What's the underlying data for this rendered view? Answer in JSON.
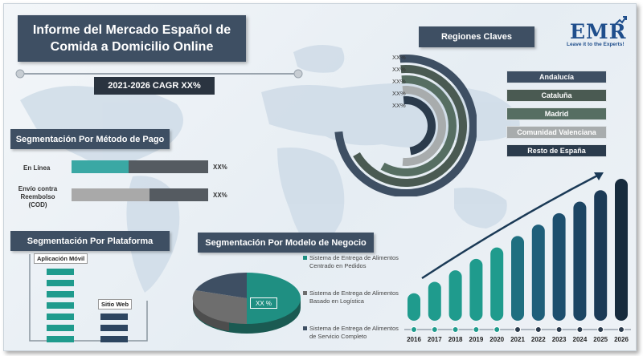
{
  "title": "Informe del Mercado Español de Comida a Domicilio Online",
  "cagr": "2021-2026 CAGR XX%",
  "logo": {
    "brand": "EMR",
    "tagline": "Leave it to the Experts!"
  },
  "payment": {
    "title": "Segmentación Por Método de Pago",
    "items": [
      {
        "label": "En Línea",
        "value_text": "XX%",
        "fill_fraction": 0.42,
        "color": "#3aa8a4"
      },
      {
        "label": "Envío contra Reembolso (COD)",
        "value_text": "XX%",
        "fill_fraction": 0.57,
        "color": "#a9a9a9"
      }
    ]
  },
  "platform": {
    "title": "Segmentación Por Plataforma",
    "items": [
      {
        "label": "Aplicación Móvil",
        "blocks": 7,
        "color": "#1f9b8d"
      },
      {
        "label": "Sitio Web",
        "blocks": 3,
        "color": "#2d4560"
      }
    ]
  },
  "business_model": {
    "title": "Segmentación Por Modelo de Negocio",
    "pie_label": "XX %",
    "legend": [
      {
        "label": "Sistema de Entrega de Alimentos Centrado en Pedidos",
        "color": "#1f8f82"
      },
      {
        "label": "Sistema de Entrega de Alimentos Basado en Logística",
        "color": "#6e6e6e"
      },
      {
        "label": "Sistema de Entrega de Alimentos de Servicio Completo",
        "color": "#3e4f63"
      }
    ]
  },
  "regions": {
    "title": "Regiones Claves",
    "items": [
      {
        "name": "Andalucía",
        "value_text": "XX%",
        "color": "#3e4f63"
      },
      {
        "name": "Cataluña",
        "value_text": "XX%",
        "color": "#4a5a52"
      },
      {
        "name": "Madrid",
        "value_text": "XX%",
        "color": "#566e62"
      },
      {
        "name": "Comunidad Valenciana",
        "value_text": "XX%",
        "color": "#a8acad"
      },
      {
        "name": "Resto de España",
        "value_text": "XX%",
        "color": "#2b3b4c"
      }
    ]
  },
  "chart_data": {
    "type": "bar",
    "categories": [
      "2016",
      "2017",
      "2018",
      "2019",
      "2020",
      "2021",
      "2022",
      "2023",
      "2024",
      "2025",
      "2026"
    ],
    "values": [
      1,
      2,
      3,
      4,
      5,
      6,
      7,
      8,
      9,
      10,
      11
    ],
    "title": "",
    "xlabel": "",
    "ylabel": "",
    "ylim": [
      0,
      11
    ],
    "trend_arrow": true,
    "colors": [
      "#1f9b8d",
      "#1f9b8d",
      "#1f9b8d",
      "#1f9b8d",
      "#1f9b8d",
      "#1f6f80",
      "#1f5f7a",
      "#1d4f6e",
      "#1c4563",
      "#1b3a56",
      "#172b3d"
    ]
  }
}
